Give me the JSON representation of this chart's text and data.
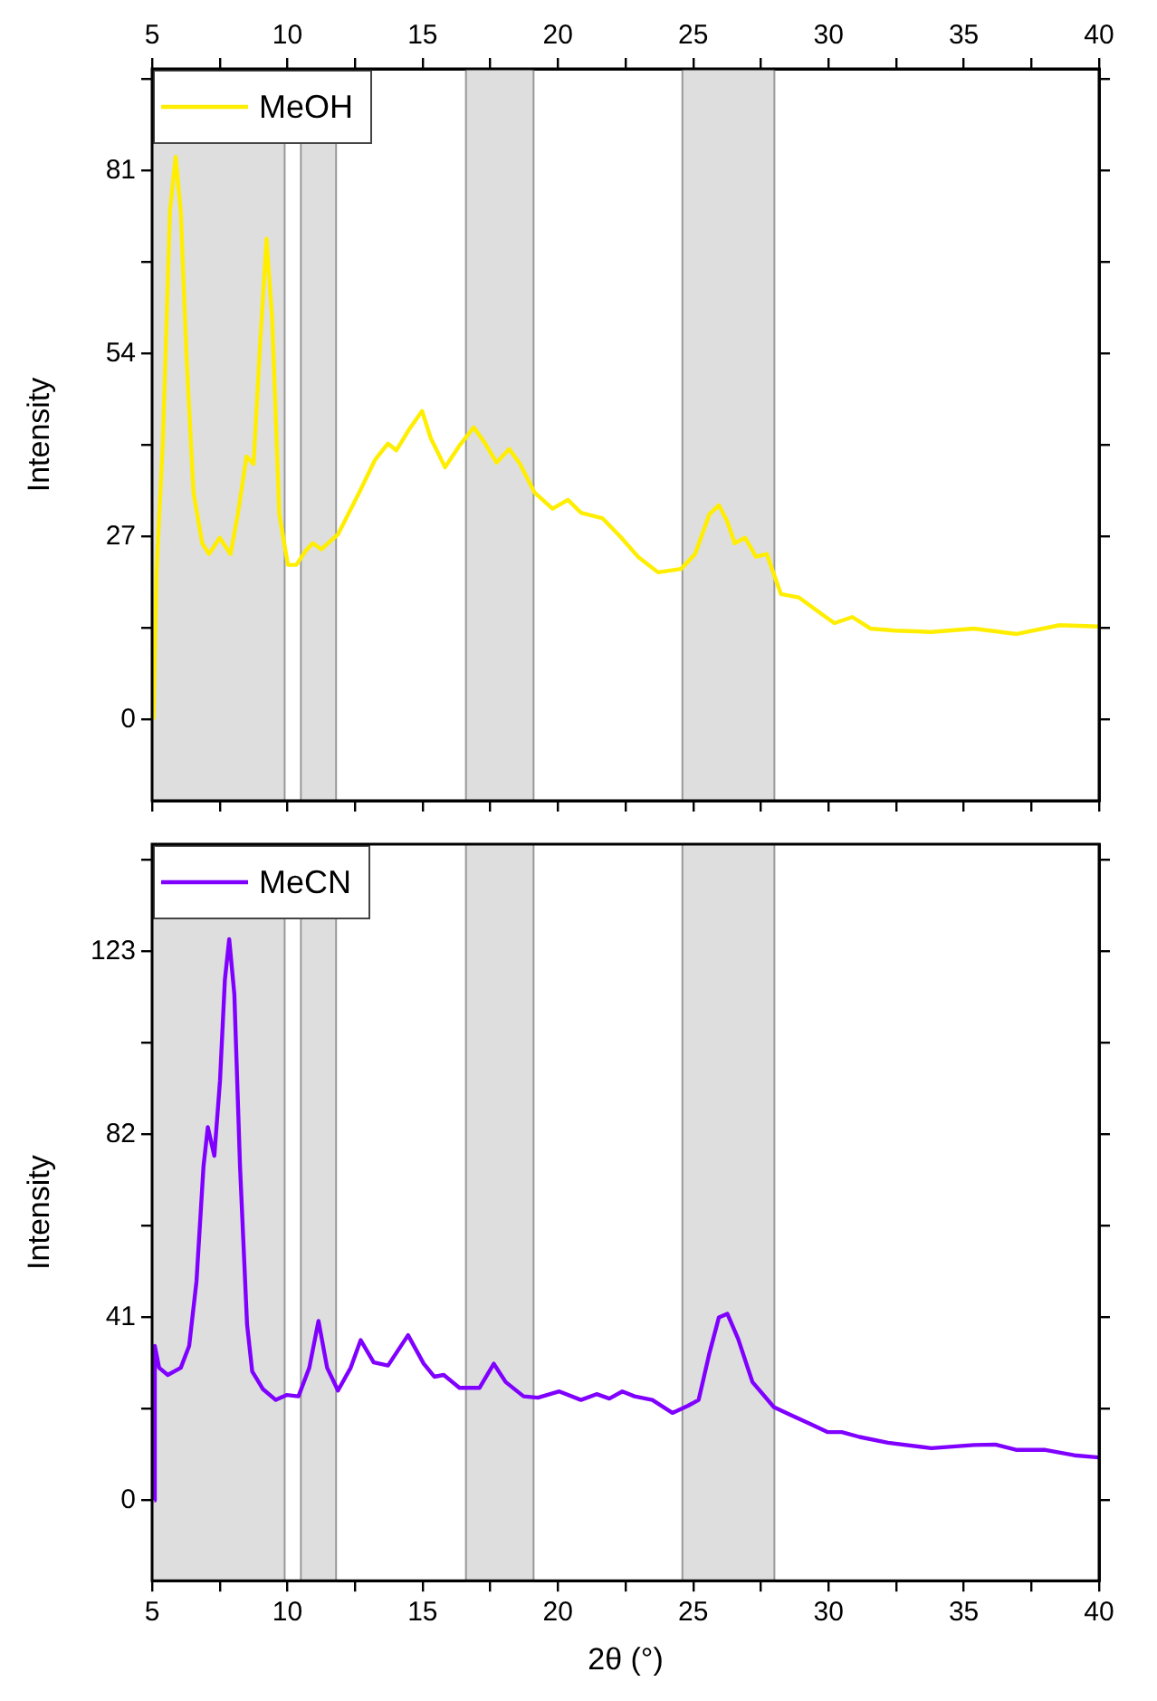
{
  "chart_data": [
    {
      "type": "line",
      "ylabel": "Intensity",
      "legend": "top left",
      "grid": false,
      "marker": "none",
      "line_style": "solid",
      "tick_labels": "y",
      "xlim": [
        5,
        40
      ],
      "xticks": [
        5,
        {
          "value": 7.5,
          "label": null
        },
        10,
        {
          "value": 12.5,
          "label": null
        },
        15,
        {
          "value": 17.5,
          "label": null
        },
        20,
        {
          "value": 22.5,
          "label": null
        },
        25,
        {
          "value": 27.5,
          "label": null
        },
        30,
        {
          "value": 32.5,
          "label": null
        },
        35,
        {
          "value": 37.5,
          "label": null
        },
        40
      ],
      "x2lim": [
        5,
        40
      ],
      "x2ticks": [
        5,
        {
          "value": 7.5,
          "label": null
        },
        10,
        {
          "value": 12.5,
          "label": null
        },
        15,
        {
          "value": 17.5,
          "label": null
        },
        20,
        {
          "value": 22.5,
          "label": null
        },
        25,
        {
          "value": 27.5,
          "label": null
        },
        30,
        {
          "value": 32.5,
          "label": null
        },
        35,
        {
          "value": 37.5,
          "label": null
        },
        40
      ],
      "ylim": [
        -12,
        96
      ],
      "yticks": [
        0,
        {
          "value": 13.5,
          "label": null
        },
        27,
        {
          "value": 40.5,
          "label": null
        },
        54,
        {
          "value": 67.5,
          "label": null
        },
        81,
        {
          "value": 94.5,
          "label": null
        }
      ],
      "bands": [
        {
          "axis": "x",
          "from": 5,
          "to": 9.9,
          "color": "#dedede"
        },
        {
          "axis": "x",
          "from": 10.5,
          "to": 11.8,
          "color": "#dedede"
        },
        {
          "axis": "x",
          "from": 16.6,
          "to": 19.1,
          "color": "#dedede"
        },
        {
          "axis": "x",
          "from": 24.6,
          "to": 28.0,
          "color": "#dedede"
        }
      ],
      "series": [
        {
          "name": "MeOH",
          "color": "#ffee00",
          "x": [
            5.05,
            5.16,
            5.4,
            5.66,
            5.87,
            6.06,
            6.27,
            6.53,
            6.85,
            7.1,
            7.5,
            7.9,
            8.17,
            8.49,
            8.75,
            9.0,
            9.23,
            9.44,
            9.7,
            10.02,
            10.33,
            10.68,
            10.94,
            11.26,
            11.87,
            12.66,
            13.24,
            13.72,
            14.03,
            14.5,
            14.98,
            15.3,
            15.83,
            16.36,
            16.89,
            17.28,
            17.73,
            18.2,
            18.6,
            19.13,
            19.8,
            20.37,
            20.85,
            21.64,
            22.3,
            22.96,
            23.7,
            24.55,
            25.07,
            25.6,
            25.95,
            26.26,
            26.53,
            26.92,
            27.32,
            27.72,
            28.24,
            28.9,
            29.83,
            30.22,
            30.88,
            31.55,
            32.47,
            33.8,
            35.37,
            36.96,
            38.54,
            40
          ],
          "values": [
            0,
            21.7,
            41,
            75,
            83,
            75,
            53.8,
            33.5,
            26,
            24.4,
            26.8,
            24.4,
            30.3,
            38.8,
            37.7,
            55.9,
            70.9,
            59,
            30.3,
            22.8,
            22.8,
            24.9,
            26,
            25.1,
            27.3,
            33.5,
            38.3,
            40.7,
            39.7,
            42.8,
            45.5,
            41.5,
            37.2,
            40.4,
            43.1,
            40.9,
            37.9,
            39.9,
            37.7,
            33.5,
            31.1,
            32.4,
            30.5,
            29.7,
            27,
            24,
            21.7,
            22.2,
            24.4,
            30.3,
            31.6,
            29.2,
            26,
            26.8,
            24,
            24.4,
            18.5,
            18,
            15.3,
            14.2,
            15.1,
            13.4,
            13.1,
            12.9,
            13.4,
            12.6,
            13.9,
            13.7
          ]
        }
      ]
    },
    {
      "type": "line",
      "xlabel": "2θ (°)",
      "ylabel": "Intensity",
      "legend": "top left",
      "grid": false,
      "marker": "none",
      "line_style": "solid",
      "xlim": [
        5,
        40
      ],
      "xticks": [
        5,
        {
          "value": 7.5,
          "label": null
        },
        10,
        {
          "value": 12.5,
          "label": null
        },
        15,
        {
          "value": 17.5,
          "label": null
        },
        20,
        {
          "value": 22.5,
          "label": null
        },
        25,
        {
          "value": 27.5,
          "label": null
        },
        30,
        {
          "value": 32.5,
          "label": null
        },
        35,
        {
          "value": 37.5,
          "label": null
        },
        40
      ],
      "ylim": [
        -18,
        147
      ],
      "yticks": [
        0,
        {
          "value": 20.5,
          "label": null
        },
        41,
        {
          "value": 61.5,
          "label": null
        },
        82,
        {
          "value": 102.5,
          "label": null
        },
        123,
        {
          "value": 143.5,
          "label": null
        }
      ],
      "bands": [
        {
          "axis": "x",
          "from": 5,
          "to": 9.9,
          "color": "#dedede"
        },
        {
          "axis": "x",
          "from": 10.5,
          "to": 11.8,
          "color": "#dedede"
        },
        {
          "axis": "x",
          "from": 16.6,
          "to": 19.1,
          "color": "#dedede"
        },
        {
          "axis": "x",
          "from": 24.6,
          "to": 28.0,
          "color": "#dedede"
        }
      ],
      "series": [
        {
          "name": "MeCN",
          "color": "#8000ff",
          "x": [
            5.08,
            5.1,
            5.26,
            5.58,
            6.06,
            6.37,
            6.64,
            6.9,
            7.06,
            7.3,
            7.51,
            7.69,
            7.85,
            8.04,
            8.25,
            8.51,
            8.7,
            9.1,
            9.57,
            9.97,
            10.41,
            10.81,
            11.15,
            11.47,
            11.87,
            12.34,
            12.71,
            13.19,
            13.72,
            14.46,
            15.04,
            15.43,
            15.78,
            16.36,
            17.1,
            17.63,
            18.07,
            18.73,
            19.26,
            20.05,
            20.85,
            21.43,
            21.9,
            22.38,
            22.83,
            23.49,
            24.23,
            24.81,
            25.2,
            25.6,
            25.95,
            26.26,
            26.66,
            27.19,
            27.98,
            28.64,
            29.3,
            29.96,
            30.49,
            31.15,
            32.2,
            33.8,
            35.37,
            36.17,
            36.96,
            38.02,
            39.08,
            40
          ],
          "values": [
            0,
            34.6,
            29.7,
            28.1,
            29.7,
            34.6,
            49,
            74.8,
            83.6,
            77.2,
            94,
            116.6,
            125.7,
            113.4,
            74.8,
            39.4,
            28.9,
            24.9,
            22.5,
            23.6,
            23.3,
            29.7,
            40.2,
            29.7,
            24.6,
            29.7,
            35.9,
            30.9,
            30.2,
            37,
            30.6,
            27.7,
            28.1,
            25.2,
            25.2,
            30.6,
            26.5,
            23.3,
            23,
            24.4,
            22.5,
            23.8,
            22.8,
            24.4,
            23.3,
            22.5,
            19.6,
            21.2,
            22.5,
            33,
            41,
            41.8,
            36.2,
            26.5,
            20.9,
            19,
            17.2,
            15.3,
            15.3,
            14.2,
            12.9,
            11.7,
            12.4,
            12.5,
            11.3,
            11.3,
            10.1,
            9.6
          ]
        }
      ]
    }
  ]
}
